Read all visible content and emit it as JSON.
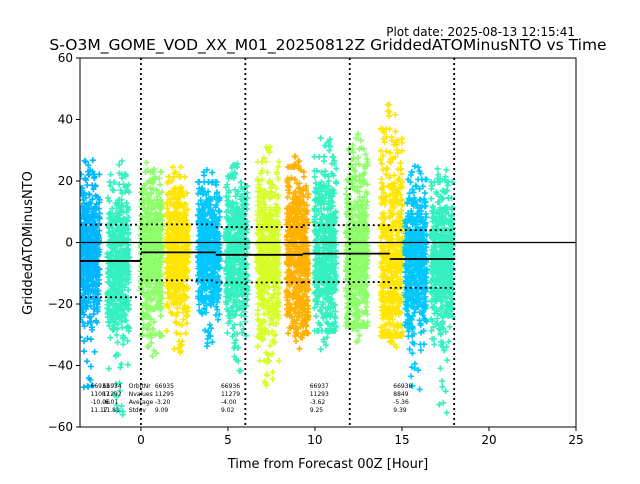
{
  "chart_data": {
    "type": "scatter",
    "title": "S-O3M_GOME_VOD_XX_M01_20250812Z GriddedATOMinusNTO vs Time",
    "plot_date": "Plot date: 2025-08-13 12:15:41",
    "xlabel": "Time from Forecast 00Z [Hour]",
    "ylabel": "GriddedATOMinusNTO",
    "xlim": [
      -3.5,
      25
    ],
    "ylim": [
      -60,
      60
    ],
    "xticks": [
      0,
      5,
      10,
      15,
      20,
      25
    ],
    "yticks": [
      -60,
      -40,
      -20,
      0,
      20,
      40,
      60
    ],
    "grid": false,
    "vlines": [
      0,
      6,
      12,
      18
    ],
    "zero_line": 0,
    "marker": "+",
    "colormap": [
      "#1e90ff",
      "#00c8ff",
      "#35f0c0",
      "#8dff6a",
      "#d6ff2a",
      "#ffe600",
      "#ffb000"
    ],
    "clusters": [
      {
        "x": -3.0,
        "center": -4,
        "p1": -50,
        "p99": 27,
        "color": "#00b7ff"
      },
      {
        "x": -1.3,
        "center": -7,
        "p1": -57,
        "p99": 27,
        "color": "#35f0c0"
      },
      {
        "x": 0.6,
        "center": -3,
        "p1": -37,
        "p99": 28,
        "color": "#8dff6a"
      },
      {
        "x": 2.1,
        "center": -2,
        "p1": -36,
        "p99": 26,
        "color": "#ffe600"
      },
      {
        "x": 3.9,
        "center": -2,
        "p1": -34,
        "p99": 24,
        "color": "#00c8ff"
      },
      {
        "x": 5.5,
        "center": -4,
        "p1": -42,
        "p99": 27,
        "color": "#35f0c0"
      },
      {
        "x": 7.3,
        "center": -5,
        "p1": -47,
        "p99": 32,
        "color": "#d6ff2a"
      },
      {
        "x": 9.0,
        "center": -4,
        "p1": -36,
        "p99": 30,
        "color": "#ffb000"
      },
      {
        "x": 10.6,
        "center": -3,
        "p1": -35,
        "p99": 34,
        "color": "#35f0c0"
      },
      {
        "x": 12.4,
        "center": -3,
        "p1": -33,
        "p99": 37,
        "color": "#8dff6a"
      },
      {
        "x": 14.4,
        "center": -5,
        "p1": -37,
        "p99": 45,
        "color": "#ffe600"
      },
      {
        "x": 15.8,
        "center": -6,
        "p1": -48,
        "p99": 25,
        "color": "#00c8ff"
      },
      {
        "x": 17.3,
        "center": -6,
        "p1": -56,
        "p99": 24,
        "color": "#35f0c0"
      }
    ],
    "segments": [
      {
        "x0": -3.5,
        "x1": 0,
        "mean": -6.0,
        "sd": 11.8
      },
      {
        "x0": 0,
        "x1": 4.3,
        "mean": -3.2,
        "sd": 9.09
      },
      {
        "x0": 4.3,
        "x1": 9.3,
        "mean": -4.0,
        "sd": 9.02
      },
      {
        "x0": 9.3,
        "x1": 14.3,
        "mean": -3.62,
        "sd": 9.25
      },
      {
        "x0": 14.3,
        "x1": 18,
        "mean": -5.36,
        "sd": 9.39
      }
    ],
    "annotations": [
      {
        "x": -2.9,
        "lines": [
          "66933",
          "11087",
          "-10.06",
          "11.17"
        ]
      },
      {
        "x": -2.2,
        "lines": [
          "66934",
          "11292",
          "-6.01",
          "11.81"
        ]
      },
      {
        "x": -0.7,
        "lines": [
          "OrbitNr",
          "Nvalues",
          "Average",
          "Stdev"
        ]
      },
      {
        "x": 0.8,
        "lines": [
          "66935",
          "11295",
          "-3.20",
          "9.09"
        ]
      },
      {
        "x": 4.6,
        "lines": [
          "66936",
          "11279",
          "-4.00",
          "9.02"
        ]
      },
      {
        "x": 9.7,
        "lines": [
          "66937",
          "11293",
          "-3.62",
          "9.25"
        ]
      },
      {
        "x": 14.5,
        "lines": [
          "66938",
          "8849",
          "-5.36",
          "9.39"
        ]
      }
    ]
  }
}
